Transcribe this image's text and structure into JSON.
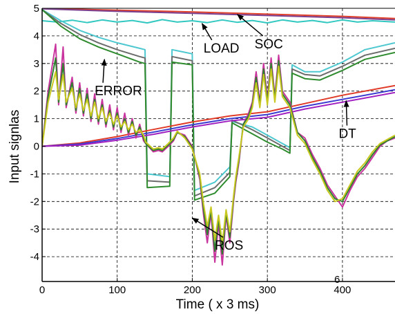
{
  "chart_data": {
    "type": "line",
    "title": "",
    "xlabel": "Time ( x 3 ms)",
    "ylabel": "Input signlas",
    "xlim": [
      0,
      470
    ],
    "ylim": [
      -4.9,
      5
    ],
    "xticks": [
      0,
      100,
      200,
      300,
      400
    ],
    "yticks": [
      5,
      4,
      3,
      2,
      1,
      0,
      -1,
      -2,
      -3,
      -4
    ],
    "grid": true,
    "legend": "none",
    "stray_text": "6",
    "annotations": [
      {
        "label": "SOC",
        "text_x": 283,
        "text_y": 3.55,
        "arrow_to": [
          260,
          4.78
        ]
      },
      {
        "label": "LOAD",
        "text_x": 215,
        "text_y": 3.4,
        "arrow_to": [
          213,
          4.45
        ]
      },
      {
        "label": "ERROR",
        "text_x": 70,
        "text_y": 1.85,
        "arrow_to": [
          83,
          3.15
        ]
      },
      {
        "label": "DT",
        "text_x": 395,
        "text_y": 0.3,
        "arrow_to": [
          405,
          1.65
        ]
      },
      {
        "label": "ROS",
        "text_x": 230,
        "text_y": -3.75,
        "arrow_to": [
          200,
          -2.6
        ]
      }
    ],
    "series": [
      {
        "color": "#e0402a",
        "x": [
          0,
          100,
          200,
          300,
          400,
          470
        ],
        "y": [
          5.0,
          4.93,
          4.87,
          4.79,
          4.71,
          4.63
        ]
      },
      {
        "color": "#7b3f8f",
        "x": [
          0,
          100,
          200,
          300,
          400,
          470
        ],
        "y": [
          4.98,
          4.89,
          4.82,
          4.74,
          4.66,
          4.58
        ]
      },
      {
        "color": "#30c8c0",
        "x": [
          0,
          20,
          40,
          60,
          80,
          100,
          120,
          140,
          160,
          180,
          200,
          220,
          240,
          260,
          280,
          300,
          320,
          340,
          360,
          380,
          400,
          420,
          440,
          470
        ],
        "y": [
          4.55,
          4.5,
          4.57,
          4.48,
          4.58,
          4.5,
          4.56,
          4.47,
          4.59,
          4.5,
          4.55,
          4.48,
          4.58,
          4.49,
          4.56,
          4.47,
          4.58,
          4.5,
          4.56,
          4.48,
          4.58,
          4.5,
          4.55,
          4.5
        ]
      },
      {
        "color": "#4ec8d0",
        "x": [
          0,
          25,
          50,
          75,
          100,
          130,
          137,
          140,
          170,
          173,
          200,
          203,
          230,
          250,
          253,
          280,
          300,
          320,
          330,
          333,
          350,
          370,
          400,
          430,
          470
        ],
        "y": [
          4.95,
          4.55,
          4.2,
          3.95,
          3.75,
          3.55,
          3.5,
          -1.0,
          -1.1,
          3.5,
          3.35,
          -1.6,
          -1.3,
          -0.75,
          0.9,
          0.7,
          0.4,
          0.1,
          -0.05,
          2.95,
          2.7,
          2.7,
          3.05,
          3.5,
          3.75
        ]
      },
      {
        "color": "#6c6c6c",
        "x": [
          0,
          25,
          50,
          75,
          100,
          130,
          137,
          140,
          170,
          173,
          200,
          203,
          230,
          250,
          253,
          280,
          300,
          320,
          330,
          333,
          350,
          370,
          400,
          430,
          470
        ],
        "y": [
          4.95,
          4.45,
          4.05,
          3.75,
          3.5,
          3.25,
          3.2,
          -1.25,
          -1.3,
          3.25,
          3.1,
          -1.8,
          -1.5,
          -0.95,
          0.95,
          0.6,
          0.3,
          0.0,
          -0.15,
          2.8,
          2.6,
          2.55,
          2.9,
          3.3,
          3.55
        ]
      },
      {
        "color": "#2e8b2e",
        "x": [
          0,
          25,
          50,
          75,
          100,
          130,
          137,
          140,
          170,
          173,
          200,
          203,
          230,
          250,
          253,
          280,
          300,
          320,
          330,
          333,
          350,
          370,
          400,
          430,
          470
        ],
        "y": [
          4.95,
          4.35,
          3.9,
          3.6,
          3.35,
          3.05,
          3.0,
          -1.5,
          -1.45,
          3.05,
          2.95,
          -1.95,
          -1.7,
          -1.1,
          0.85,
          0.45,
          0.15,
          -0.1,
          -0.25,
          2.65,
          2.45,
          2.4,
          2.75,
          3.15,
          3.4
        ]
      },
      {
        "color": "#e03a28",
        "x": [
          0,
          50,
          100,
          150,
          200,
          250,
          300,
          350,
          400,
          470
        ],
        "y": [
          0.0,
          0.12,
          0.35,
          0.62,
          0.88,
          1.1,
          1.25,
          1.55,
          1.85,
          2.2
        ]
      },
      {
        "color": "#3a3ad0",
        "x": [
          0,
          50,
          100,
          150,
          200,
          250,
          300,
          350,
          400,
          470
        ],
        "y": [
          0.0,
          0.08,
          0.28,
          0.52,
          0.78,
          1.0,
          1.15,
          1.45,
          1.7,
          2.05
        ]
      },
      {
        "color": "#a020c0",
        "x": [
          0,
          50,
          100,
          150,
          200,
          250,
          300,
          350,
          400,
          470
        ],
        "y": [
          0.0,
          0.04,
          0.22,
          0.44,
          0.7,
          0.92,
          1.05,
          1.35,
          1.6,
          1.95
        ]
      },
      {
        "color": "#c8339e",
        "x": [
          0,
          8,
          18,
          22,
          28,
          32,
          40,
          45,
          50,
          55,
          60,
          65,
          70,
          75,
          80,
          85,
          90,
          95,
          100,
          105,
          110,
          115,
          120,
          125,
          130,
          135,
          138,
          148,
          155,
          160,
          168,
          175,
          180,
          190,
          200,
          210,
          215,
          220,
          225,
          230,
          235,
          240,
          245,
          250,
          255,
          258,
          262,
          268,
          275,
          280,
          285,
          290,
          295,
          300,
          305,
          310,
          315,
          320,
          330,
          340,
          350,
          360,
          370,
          380,
          390,
          400,
          410,
          420,
          430,
          440,
          450,
          460,
          470
        ],
        "y": [
          0.0,
          2.0,
          3.7,
          1.5,
          3.6,
          1.4,
          2.5,
          1.2,
          2.3,
          1.1,
          2.1,
          0.9,
          1.9,
          0.8,
          1.7,
          0.7,
          1.5,
          0.6,
          1.4,
          0.5,
          1.2,
          0.4,
          1.0,
          0.3,
          0.8,
          0.2,
          0.1,
          -0.2,
          -0.15,
          -0.2,
          0.0,
          0.2,
          0.5,
          0.4,
          0.0,
          -1.2,
          -2.5,
          -3.5,
          -2.4,
          -4.2,
          -2.8,
          -4.3,
          -2.5,
          -3.5,
          -2.0,
          -1.3,
          -0.6,
          0.8,
          1.2,
          1.6,
          2.7,
          1.6,
          3.0,
          1.7,
          3.2,
          1.8,
          3.3,
          2.0,
          1.6,
          0.5,
          0.3,
          -0.3,
          -0.8,
          -1.4,
          -1.8,
          -2.2,
          -1.6,
          -1.1,
          -0.8,
          -0.4,
          0.0,
          0.2,
          0.3
        ]
      },
      {
        "color": "#2f7f2f",
        "x": [
          0,
          8,
          18,
          22,
          28,
          32,
          40,
          45,
          50,
          55,
          60,
          65,
          70,
          75,
          80,
          85,
          90,
          95,
          100,
          105,
          110,
          115,
          120,
          125,
          130,
          135,
          138,
          148,
          155,
          160,
          168,
          175,
          180,
          190,
          200,
          210,
          215,
          220,
          225,
          230,
          235,
          240,
          245,
          250,
          255,
          258,
          262,
          268,
          275,
          280,
          285,
          290,
          295,
          300,
          305,
          310,
          315,
          320,
          330,
          340,
          350,
          360,
          370,
          380,
          390,
          400,
          410,
          420,
          430,
          440,
          450,
          460,
          470
        ],
        "y": [
          0.0,
          1.8,
          3.2,
          1.6,
          3.0,
          1.5,
          2.3,
          1.3,
          2.1,
          1.2,
          1.9,
          1.0,
          1.7,
          0.9,
          1.5,
          0.8,
          1.3,
          0.7,
          1.2,
          0.6,
          1.0,
          0.5,
          0.9,
          0.4,
          0.7,
          0.3,
          0.1,
          -0.15,
          -0.1,
          -0.15,
          0.05,
          0.25,
          0.5,
          0.35,
          -0.05,
          -1.1,
          -2.3,
          -3.2,
          -2.3,
          -3.8,
          -2.6,
          -3.9,
          -2.4,
          -3.3,
          -1.9,
          -1.2,
          -0.5,
          0.8,
          1.1,
          1.5,
          2.5,
          1.5,
          2.8,
          1.6,
          3.0,
          1.7,
          3.1,
          1.9,
          1.5,
          0.5,
          0.2,
          -0.4,
          -0.9,
          -1.5,
          -1.9,
          -2.0,
          -1.5,
          -1.0,
          -0.7,
          -0.3,
          0.05,
          0.2,
          0.35
        ]
      },
      {
        "color": "#c8c820",
        "x": [
          0,
          8,
          18,
          22,
          28,
          32,
          40,
          45,
          50,
          55,
          60,
          65,
          70,
          75,
          80,
          85,
          90,
          95,
          100,
          105,
          110,
          115,
          120,
          125,
          130,
          135,
          138,
          148,
          155,
          160,
          168,
          175,
          180,
          190,
          200,
          210,
          215,
          220,
          225,
          230,
          235,
          240,
          245,
          250,
          255,
          258,
          262,
          268,
          275,
          280,
          285,
          290,
          295,
          300,
          305,
          310,
          315,
          320,
          330,
          340,
          350,
          360,
          370,
          380,
          390,
          400,
          410,
          420,
          430,
          440,
          450,
          460,
          470
        ],
        "y": [
          0.0,
          1.6,
          2.7,
          1.7,
          2.6,
          1.6,
          2.1,
          1.4,
          1.9,
          1.3,
          1.7,
          1.1,
          1.6,
          1.0,
          1.4,
          0.9,
          1.2,
          0.8,
          1.1,
          0.7,
          0.9,
          0.6,
          0.8,
          0.5,
          0.6,
          0.4,
          0.15,
          -0.1,
          -0.05,
          -0.1,
          0.1,
          0.3,
          0.55,
          0.3,
          -0.1,
          -1.0,
          -2.1,
          -2.9,
          -2.2,
          -3.4,
          -2.5,
          -3.5,
          -2.3,
          -3.1,
          -1.8,
          -1.1,
          -0.4,
          0.7,
          1.0,
          1.4,
          2.3,
          1.4,
          2.6,
          1.5,
          2.8,
          1.6,
          2.9,
          1.8,
          1.4,
          0.4,
          0.1,
          -0.5,
          -1.0,
          -1.6,
          -2.0,
          -1.9,
          -1.4,
          -0.9,
          -0.6,
          -0.2,
          0.1,
          0.25,
          0.4
        ]
      }
    ]
  }
}
